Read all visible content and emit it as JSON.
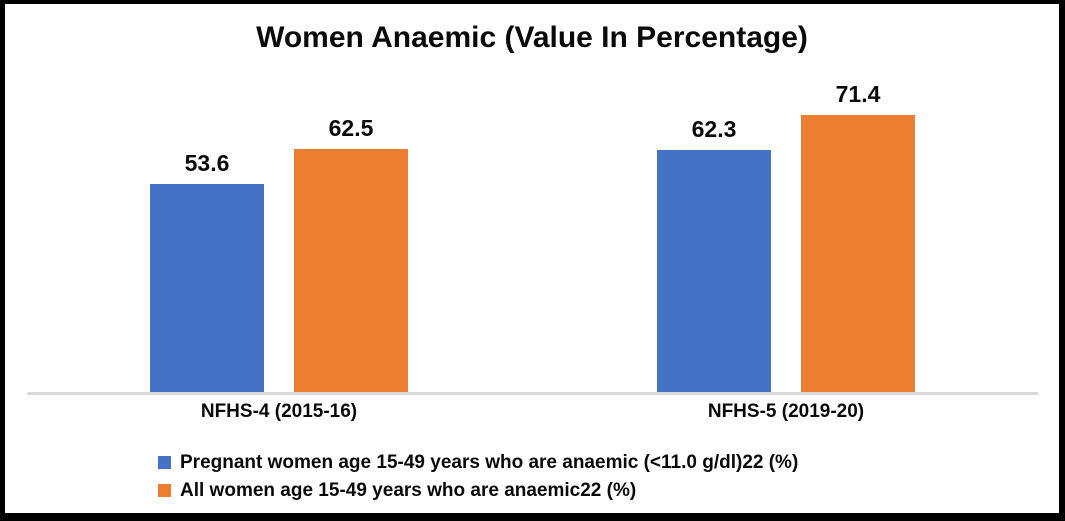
{
  "chart_data": {
    "type": "bar",
    "title": "Women Anaemic (Value In Percentage)",
    "categories": [
      "NFHS-4 (2015-16)",
      "NFHS-5 (2019-20)"
    ],
    "series": [
      {
        "name": "Pregnant women age 15-49 years who are anaemic (<11.0 g/dl)22 (%)",
        "color": "#4472C4",
        "values": [
          53.6,
          62.3
        ],
        "labels": [
          "53.6",
          "62.3"
        ]
      },
      {
        "name": "All women age 15-49 years who are anaemic22 (%)",
        "color": "#ED7D31",
        "values": [
          62.5,
          71.4
        ],
        "labels": [
          "62.5",
          "71.4"
        ]
      }
    ],
    "ylim": [
      0,
      80
    ],
    "grid": false,
    "data_labels_shown": true,
    "legend_position": "bottom-left",
    "axis_line_color": "#D9D9D9",
    "frame_border_color": "#000000",
    "background_color": "#FFFFFF",
    "text_color": "#0A0A0A"
  }
}
